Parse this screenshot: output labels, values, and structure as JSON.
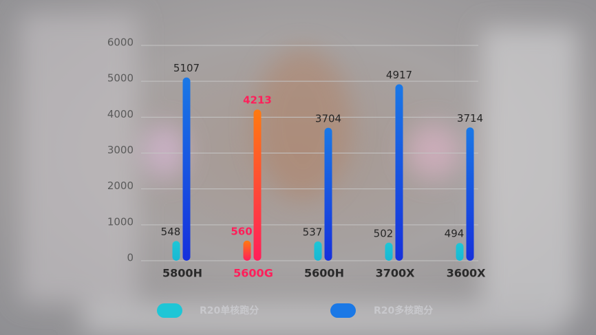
{
  "chart_data": {
    "type": "bar",
    "categories": [
      "5800H",
      "5600G",
      "5600H",
      "3700X",
      "3600X"
    ],
    "series": [
      {
        "name": "R20单核跑分",
        "color": "#1ec6d6",
        "values": [
          548,
          560,
          537,
          502,
          494
        ]
      },
      {
        "name": "R20多核跑分",
        "color": "#1a78e6",
        "values": [
          5107,
          4213,
          3704,
          4917,
          3714
        ]
      }
    ],
    "ylim": [
      0,
      6000
    ],
    "yticks": [
      0,
      1000,
      2000,
      3000,
      4000,
      5000,
      6000
    ],
    "grid": true,
    "legend": "bottom",
    "highlight_index": 1,
    "highlight_colors": [
      "#ff7a10",
      "#ff1f5a"
    ]
  }
}
